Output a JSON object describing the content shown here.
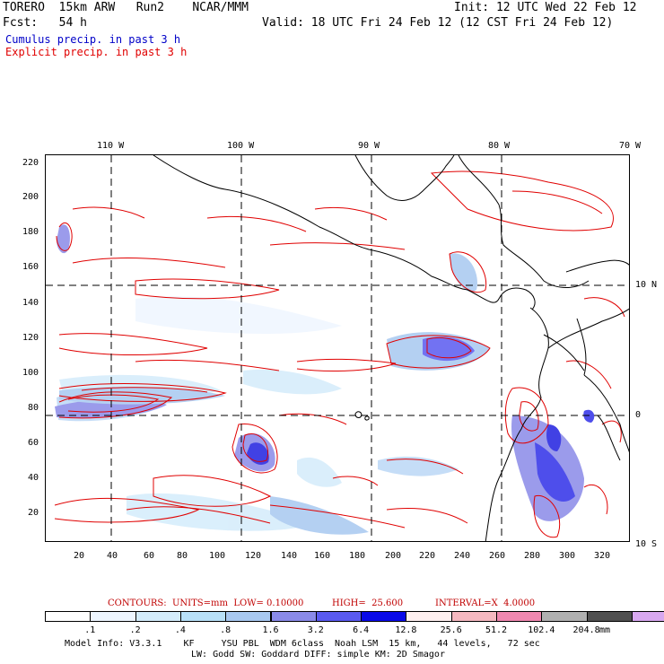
{
  "header": {
    "model": "TORERO  15km ARW   Run2    NCAR/MMM",
    "init": "Init: 12 UTC Wed 22 Feb 12",
    "fcst": "Fcst:   54 h",
    "valid": "Valid: 18 UTC Fri 24 Feb 12 (12 CST Fri 24 Feb 12)",
    "field1": "Cumulus precip. in past 3 h",
    "field2": "Explicit precip. in past 3 h"
  },
  "colors": {
    "cumulus": "#1a1aff",
    "explicit": "#e00000",
    "coast": "#000000"
  },
  "top_lon_labels": [
    "110 W",
    "100 W",
    "90 W",
    "80 W",
    "70 W"
  ],
  "right_lat_labels": [
    "10 N",
    "0",
    "10 S"
  ],
  "y_ticks": [
    "220",
    "200",
    "180",
    "160",
    "140",
    "120",
    "100",
    "80",
    "60",
    "40",
    "20"
  ],
  "x_ticks": [
    "20",
    "40",
    "60",
    "80",
    "100",
    "120",
    "140",
    "160",
    "180",
    "200",
    "220",
    "240",
    "260",
    "280",
    "300",
    "320"
  ],
  "contours": {
    "units": "CONTOURS:  UNITS=mm  LOW= 0.10000",
    "high": "HIGH=  25.600",
    "interval": "INTERVAL=X  4.0000"
  },
  "legend": {
    "colors": [
      "#ffffff",
      "#eef6ff",
      "#d4ecfb",
      "#b8e0f8",
      "#a8c8f0",
      "#8a8ae8",
      "#5a5af0",
      "#0a0ae8",
      "#fff0f0",
      "#f5b8c0",
      "#f088b0",
      "#b0b0b0",
      "#505050",
      "#d8a8f0"
    ],
    "labels": [
      ".1",
      ".2",
      ".4",
      ".8",
      "1.6",
      "3.2",
      "6.4",
      "12.8",
      "25.6",
      "51.2",
      "102.4",
      "204.8"
    ],
    "units": "mm"
  },
  "footer": {
    "line1": "Model Info: V3.3.1    KF     YSU PBL  WDM 6class  Noah LSM  15 km,   44 levels,   72 sec",
    "line2": "LW: Godd SW: Goddard DIFF: simple KM: 2D Smagor"
  }
}
